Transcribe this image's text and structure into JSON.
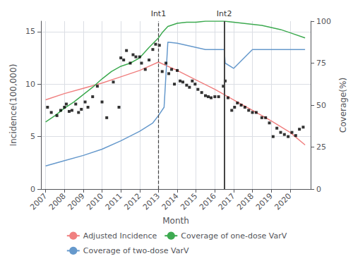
{
  "chart_data": {
    "type": "line",
    "xlabel": "Month",
    "ylabel": "Incidence(100,000)",
    "y2label": "Coverage(%)",
    "xlim": [
      2006.75,
      2021.1
    ],
    "xticks": [
      2007,
      2008,
      2009,
      2010,
      2011,
      2012,
      2013,
      2014,
      2015,
      2016,
      2017,
      2018,
      2019,
      2020
    ],
    "ylim": [
      0,
      16
    ],
    "yticks": [
      0,
      5,
      10,
      15
    ],
    "y2lim": [
      0,
      100
    ],
    "y2ticks": [
      0,
      25,
      50,
      75,
      100
    ],
    "grid": true,
    "legend": "bottom",
    "annotations": [
      {
        "x": 2013.0,
        "label": "Int1",
        "line_style": "dashed"
      },
      {
        "x": 2016.5,
        "label": "Int2",
        "line_style": "solid"
      }
    ],
    "series": [
      {
        "name": "Adjusted Incidence",
        "type": "line",
        "color": "#f08080",
        "x": [
          2007.0,
          2008.0,
          2009.0,
          2010.0,
          2011.0,
          2012.0,
          2013.0,
          2014.0,
          2015.0,
          2016.0,
          2017.0,
          2018.0,
          2019.0,
          2020.0,
          2020.8
        ],
        "values": [
          8.5,
          9.1,
          9.6,
          10.1,
          10.7,
          11.3,
          12.1,
          11.3,
          10.4,
          9.5,
          8.5,
          7.5,
          6.5,
          5.4,
          4.2
        ]
      },
      {
        "name": "Coverage of one-dose VarV",
        "type": "line",
        "color": "#3daa50",
        "x": [
          2007.0,
          2007.5,
          2008.0,
          2008.5,
          2009.0,
          2009.5,
          2010.0,
          2010.5,
          2011.0,
          2011.5,
          2012.0,
          2012.5,
          2013.0,
          2013.2,
          2013.5,
          2014.0,
          2014.5,
          2015.0,
          2015.5,
          2016.0,
          2016.3,
          2016.5,
          2017.0,
          2017.5,
          2018.0,
          2018.5,
          2019.0,
          2019.5,
          2020.0,
          2020.8
        ],
        "values": [
          6.4,
          7.0,
          7.7,
          8.3,
          9.0,
          9.7,
          10.5,
          11.2,
          11.7,
          12.0,
          12.5,
          13.5,
          14.4,
          14.9,
          15.5,
          15.8,
          15.9,
          15.9,
          16.0,
          16.0,
          16.0,
          16.0,
          15.9,
          15.8,
          15.7,
          15.6,
          15.4,
          15.2,
          14.9,
          14.4
        ]
      },
      {
        "name": "Coverage of two-dose VarV",
        "type": "line",
        "color": "#6699cc",
        "x": [
          2007.0,
          2008.0,
          2009.0,
          2010.0,
          2011.0,
          2012.0,
          2012.7,
          2013.0,
          2013.3,
          2013.5,
          2014.0,
          2014.5,
          2015.0,
          2015.5,
          2016.0,
          2016.4,
          2016.5,
          2016.55,
          2017.0,
          2018.0,
          2019.0,
          2020.0,
          2020.8
        ],
        "values": [
          2.2,
          2.7,
          3.2,
          3.8,
          4.6,
          5.5,
          6.3,
          7.0,
          7.8,
          14.0,
          13.9,
          13.7,
          13.5,
          13.3,
          13.3,
          13.3,
          13.3,
          12.0,
          11.5,
          13.3,
          13.3,
          13.3,
          13.3
        ]
      },
      {
        "type": "scatter",
        "color": "black",
        "marker": "square",
        "x": [
          2007.1,
          2007.3,
          2007.6,
          2007.8,
          2008.0,
          2008.1,
          2008.25,
          2008.4,
          2008.6,
          2008.75,
          2008.9,
          2009.1,
          2009.25,
          2009.5,
          2009.75,
          2010.0,
          2010.25,
          2010.6,
          2010.9,
          2011.0,
          2011.15,
          2011.3,
          2011.5,
          2011.65,
          2011.8,
          2012.0,
          2012.1,
          2012.3,
          2012.5,
          2012.7,
          2012.85,
          2013.05,
          2013.2,
          2013.4,
          2013.55,
          2013.7,
          2013.85,
          2014.0,
          2014.15,
          2014.3,
          2014.5,
          2014.65,
          2014.8,
          2014.95,
          2015.1,
          2015.3,
          2015.5,
          2015.65,
          2015.8,
          2016.0,
          2016.2,
          2016.45,
          2016.55,
          2016.7,
          2016.9,
          2017.05,
          2017.2,
          2017.4,
          2017.6,
          2017.8,
          2018.0,
          2018.2,
          2018.5,
          2018.7,
          2018.9,
          2019.1,
          2019.3,
          2019.5,
          2019.7,
          2019.9,
          2020.1,
          2020.3,
          2020.5,
          2020.7
        ],
        "values": [
          7.8,
          7.3,
          7.0,
          7.5,
          7.8,
          8.1,
          7.4,
          7.5,
          8.1,
          7.3,
          7.6,
          8.3,
          7.8,
          8.8,
          9.8,
          8.3,
          6.8,
          10.2,
          7.8,
          12.5,
          12.3,
          13.2,
          12.0,
          12.8,
          12.6,
          12.6,
          12.0,
          11.4,
          12.3,
          13.3,
          13.8,
          13.7,
          11.2,
          12.0,
          11.0,
          11.4,
          10.0,
          11.3,
          10.3,
          10.2,
          9.9,
          9.7,
          10.3,
          10.0,
          9.5,
          9.2,
          8.9,
          8.8,
          8.7,
          8.8,
          8.8,
          9.8,
          10.3,
          8.7,
          7.5,
          7.8,
          8.2,
          8.0,
          7.8,
          7.5,
          7.3,
          7.3,
          6.8,
          6.8,
          6.3,
          5.0,
          5.8,
          5.4,
          5.2,
          5.0,
          5.4,
          5.1,
          5.7,
          5.9
        ]
      }
    ]
  }
}
